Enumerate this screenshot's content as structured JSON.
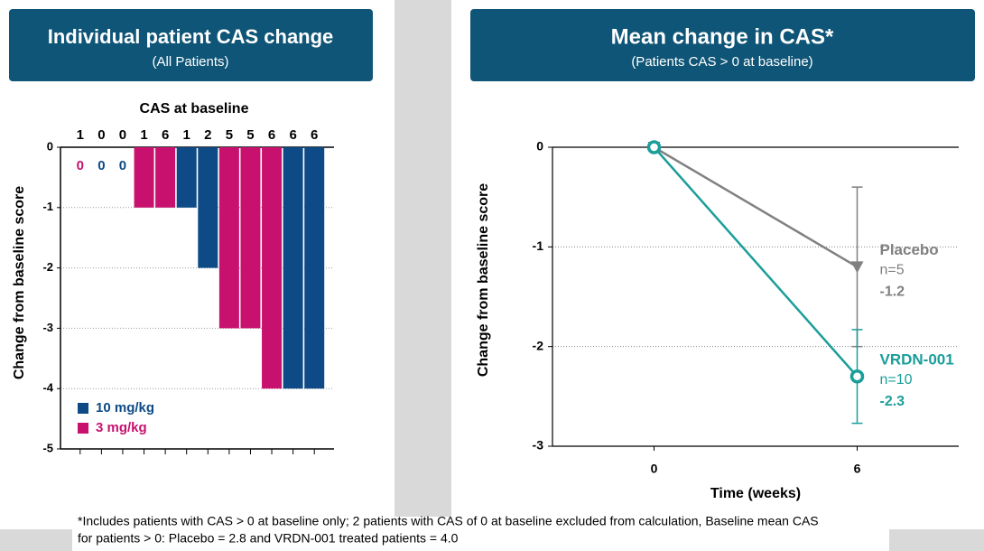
{
  "chart_data": [
    {
      "type": "bar",
      "title": "Individual patient CAS change",
      "subtitle": "(All Patients)",
      "category_title": "CAS at baseline",
      "ylabel": "Change from baseline score",
      "categories": [
        "1",
        "0",
        "0",
        "1",
        "6",
        "1",
        "2",
        "5",
        "5",
        "6",
        "6",
        "6"
      ],
      "series": [
        {
          "name": "10 mg/kg",
          "color": "#0d4a86",
          "values": [
            null,
            0,
            0,
            null,
            null,
            -1,
            -2,
            null,
            null,
            null,
            -4,
            -4
          ]
        },
        {
          "name": "3 mg/kg",
          "color": "#c8116e",
          "values": [
            0,
            null,
            null,
            -1,
            -1,
            null,
            null,
            -3,
            -3,
            -4,
            null,
            null
          ]
        }
      ],
      "ylim": [
        -5,
        0
      ],
      "yticks": [
        0,
        -1,
        -2,
        -3,
        -4,
        -5
      ],
      "grid": true,
      "legend": "lower left"
    },
    {
      "type": "line",
      "title": "Mean change in CAS*",
      "subtitle": "(Patients CAS > 0 at baseline)",
      "xlabel": "Time (weeks)",
      "ylabel": "Change from baseline score",
      "x": [
        0,
        6
      ],
      "series": [
        {
          "name": "Placebo",
          "annotation": "n=5",
          "color": "#808080",
          "marker": "triangle",
          "values": [
            0,
            -1.2
          ],
          "error": [
            null,
            0.8
          ]
        },
        {
          "name": "VRDN-001",
          "annotation": "n=10",
          "color": "#1a9e9a",
          "marker": "circle",
          "values": [
            0,
            -2.3
          ],
          "error": [
            null,
            0.47
          ]
        }
      ],
      "xlim": [
        -3,
        9
      ],
      "xticks": [
        0,
        6
      ],
      "ylim": [
        -3,
        0
      ],
      "yticks": [
        0,
        -1,
        -2,
        -3
      ],
      "grid": true
    }
  ],
  "footnote": [
    "*Includes patients with CAS > 0 at baseline only; 2 patients with CAS of 0 at baseline excluded from calculation, Baseline mean CAS",
    "for patients > 0: Placebo = 2.8 and VRDN-001 treated patients = 4.0"
  ]
}
